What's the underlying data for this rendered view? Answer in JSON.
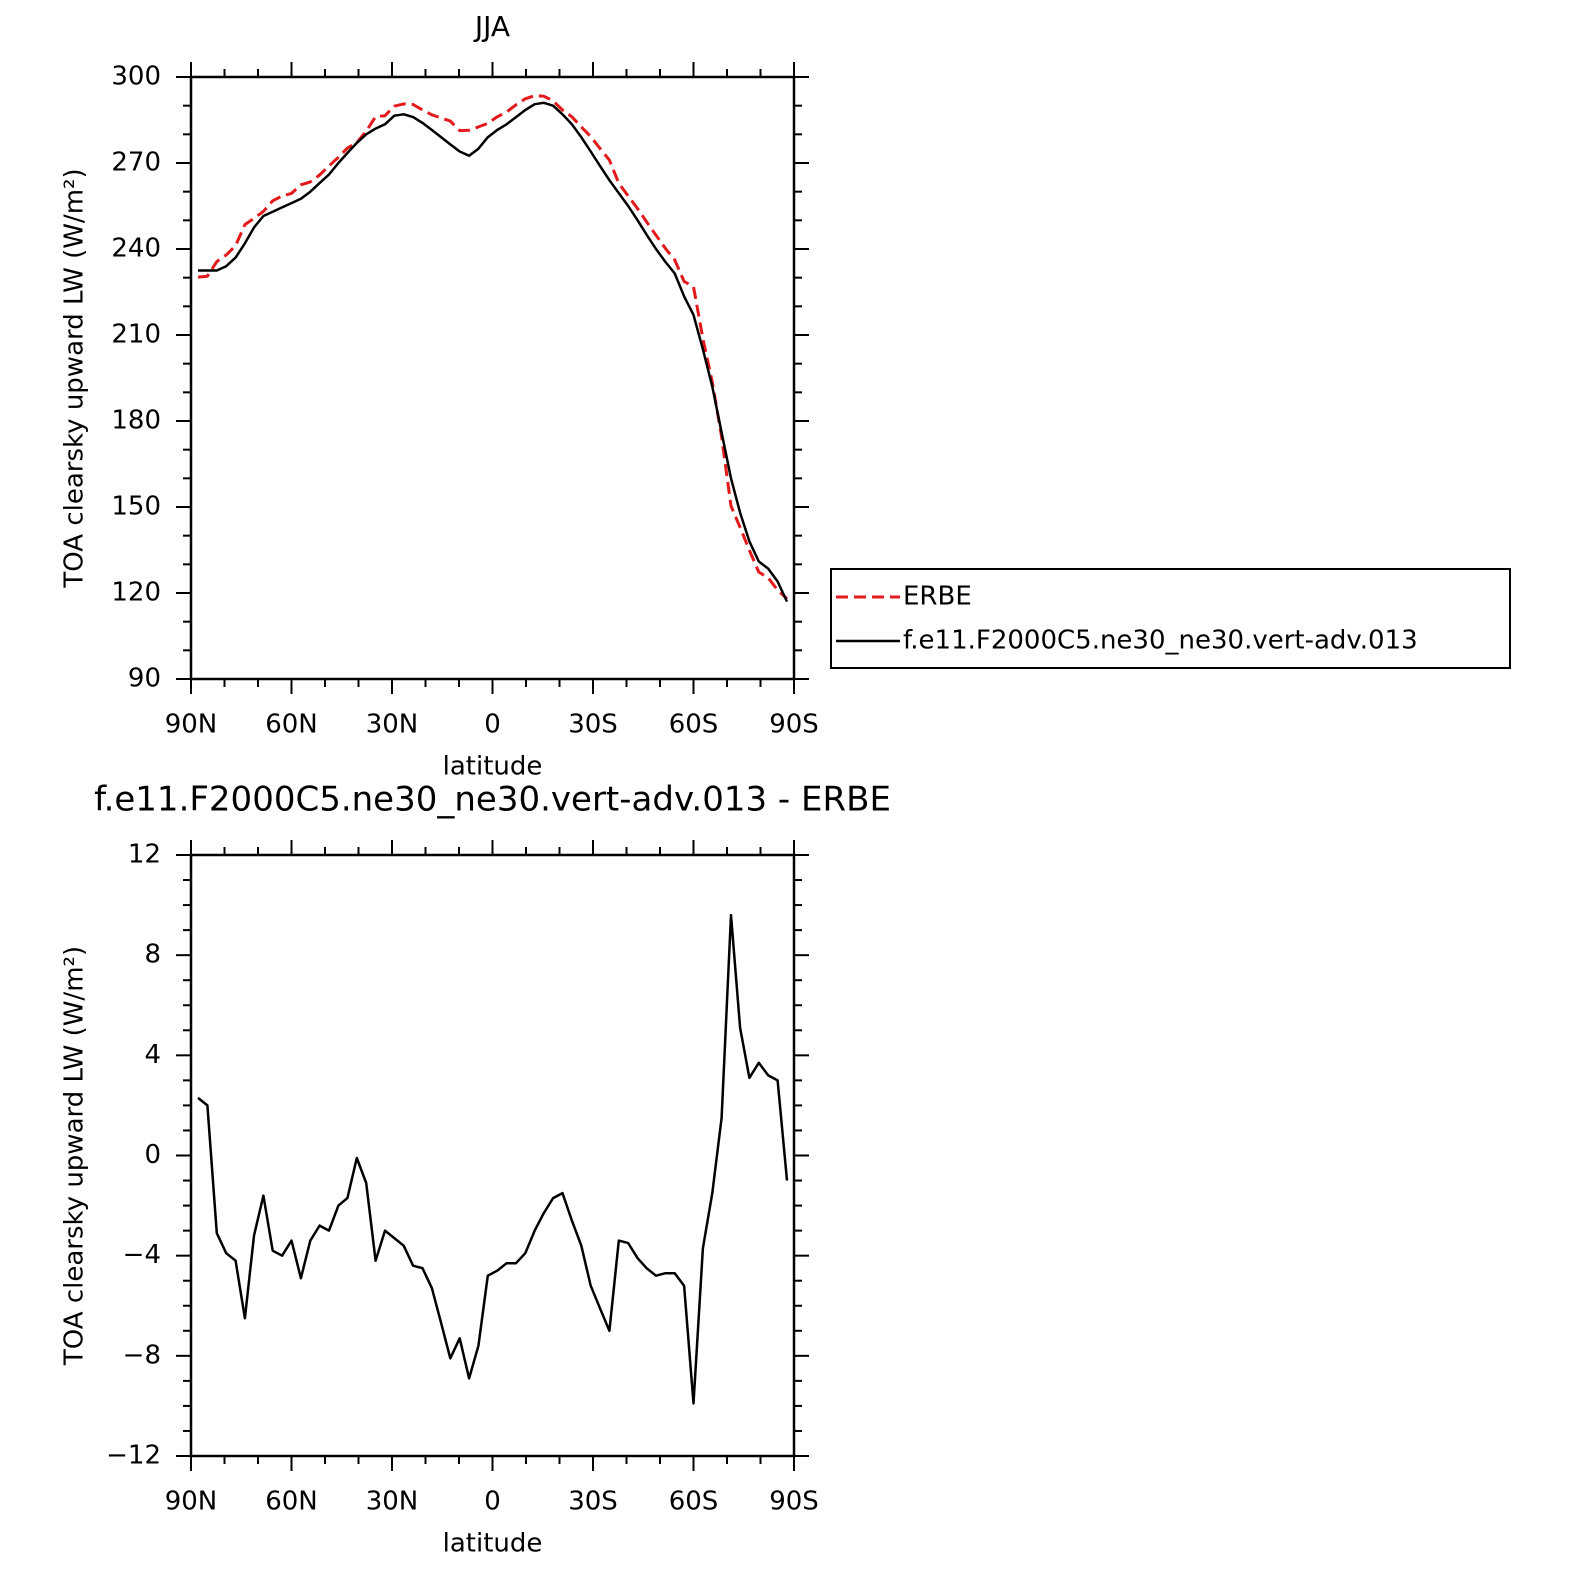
{
  "chart_data": [
    {
      "type": "line",
      "title": "JJA",
      "xlabel": "latitude",
      "ylabel": "TOA clearsky upward LW (W/m²)",
      "x": [
        87.9,
        85.1,
        82.3,
        79.5,
        76.7,
        73.9,
        71.2,
        68.4,
        65.6,
        62.8,
        60.0,
        57.2,
        54.4,
        51.6,
        48.8,
        46.0,
        43.3,
        40.5,
        37.7,
        34.9,
        32.1,
        29.3,
        26.5,
        23.7,
        20.9,
        18.1,
        15.3,
        12.6,
        9.8,
        7.0,
        4.2,
        1.4,
        -1.4,
        -4.2,
        -7.0,
        -9.8,
        -12.6,
        -15.3,
        -18.1,
        -20.9,
        -23.7,
        -26.5,
        -29.3,
        -32.1,
        -34.9,
        -37.7,
        -40.5,
        -43.3,
        -46.0,
        -48.8,
        -51.6,
        -54.4,
        -57.2,
        -60.0,
        -62.8,
        -65.6,
        -68.4,
        -71.2,
        -73.9,
        -76.7,
        -79.5,
        -82.3,
        -85.1,
        -87.9
      ],
      "series": [
        {
          "name": "ERBE",
          "color": "#e31a1c",
          "dash": true,
          "values": [
            230.2,
            230.5,
            235.6,
            237.9,
            241.2,
            248.5,
            250.7,
            253.1,
            256.8,
            258.5,
            259.4,
            262.4,
            263.4,
            265.8,
            269.0,
            272.0,
            275.2,
            277.1,
            281.1,
            286.2,
            286.5,
            289.8,
            290.6,
            290.4,
            288.5,
            286.8,
            285.7,
            284.6,
            281.3,
            281.4,
            282.6,
            283.8,
            286.1,
            287.8,
            290.3,
            292.4,
            293.5,
            293.3,
            291.7,
            288.5,
            286.1,
            282.6,
            279.2,
            275.1,
            271.0,
            262.9,
            258.5,
            254.1,
            249.5,
            244.8,
            240.2,
            236.2,
            228.7,
            226.9,
            208.7,
            193.5,
            174.5,
            150.4,
            142.9,
            134.9,
            127.3,
            125.3,
            121.0,
            118.0
          ]
        },
        {
          "name": "f.e11.F2000C5.ne30_ne30.vert-adv.013",
          "color": "#000000",
          "dash": false,
          "values": [
            232.5,
            232.5,
            232.5,
            234.0,
            237.0,
            242.0,
            247.5,
            251.5,
            253.0,
            254.5,
            256.0,
            257.5,
            260.0,
            263.0,
            266.0,
            270.0,
            273.5,
            277.0,
            280.0,
            282.0,
            283.5,
            286.5,
            287.0,
            286.0,
            284.0,
            281.5,
            279.0,
            276.5,
            274.0,
            272.5,
            275.0,
            279.0,
            281.5,
            283.5,
            286.0,
            288.5,
            290.5,
            291.0,
            290.0,
            287.0,
            283.5,
            279.0,
            274.0,
            269.0,
            264.0,
            259.5,
            255.0,
            250.0,
            245.0,
            240.0,
            235.5,
            231.5,
            223.5,
            217.0,
            205.0,
            192.0,
            176.0,
            160.0,
            148.0,
            138.0,
            131.0,
            128.5,
            124.0,
            117.0
          ]
        }
      ],
      "xlim": [
        90,
        -90
      ],
      "xticks": [
        {
          "value": 90,
          "label": "90N"
        },
        {
          "value": 60,
          "label": "60N"
        },
        {
          "value": 30,
          "label": "30N"
        },
        0,
        {
          "value": -30,
          "label": "30S"
        },
        {
          "value": -60,
          "label": "60S"
        },
        {
          "value": -90,
          "label": "90S"
        }
      ],
      "xminorticks": [
        80,
        70,
        50,
        40,
        20,
        10,
        -10,
        -20,
        -40,
        -50,
        -70,
        -80
      ],
      "ylim": [
        90,
        300
      ],
      "yticks": [
        90,
        120,
        150,
        180,
        210,
        240,
        270,
        300
      ],
      "yminorticks": [
        100,
        110,
        130,
        140,
        160,
        170,
        190,
        200,
        220,
        230,
        250,
        260,
        280,
        290
      ],
      "legend": "outside-right"
    },
    {
      "type": "line",
      "title": "f.e11.F2000C5.ne30_ne30.vert-adv.013 - ERBE",
      "xlabel": "latitude",
      "ylabel": "TOA clearsky upward LW (W/m²)",
      "x": [
        87.9,
        85.1,
        82.3,
        79.5,
        76.7,
        73.9,
        71.2,
        68.4,
        65.6,
        62.8,
        60.0,
        57.2,
        54.4,
        51.6,
        48.8,
        46.0,
        43.3,
        40.5,
        37.7,
        34.9,
        32.1,
        29.3,
        26.5,
        23.7,
        20.9,
        18.1,
        15.3,
        12.6,
        9.8,
        7.0,
        4.2,
        1.4,
        -1.4,
        -4.2,
        -7.0,
        -9.8,
        -12.6,
        -15.3,
        -18.1,
        -20.9,
        -23.7,
        -26.5,
        -29.3,
        -32.1,
        -34.9,
        -37.7,
        -40.5,
        -43.3,
        -46.0,
        -48.8,
        -51.6,
        -54.4,
        -57.2,
        -60.0,
        -62.8,
        -65.6,
        -68.4,
        -71.2,
        -73.9,
        -76.7,
        -79.5,
        -82.3,
        -85.1,
        -87.9
      ],
      "values": [
        2.3,
        2.0,
        -3.1,
        -3.9,
        -4.2,
        -6.5,
        -3.2,
        -1.6,
        -3.8,
        -4.0,
        -3.4,
        -4.9,
        -3.4,
        -2.8,
        -3.0,
        -2.0,
        -1.7,
        -0.1,
        -1.1,
        -4.2,
        -3.0,
        -3.3,
        -3.6,
        -4.4,
        -4.5,
        -5.3,
        -6.7,
        -8.1,
        -7.3,
        -8.9,
        -7.6,
        -4.8,
        -4.6,
        -4.3,
        -4.3,
        -3.9,
        -3.0,
        -2.3,
        -1.7,
        -1.5,
        -2.6,
        -3.6,
        -5.2,
        -6.1,
        -7.0,
        -3.4,
        -3.5,
        -4.1,
        -4.5,
        -4.8,
        -4.7,
        -4.7,
        -5.2,
        -9.9,
        -3.7,
        -1.5,
        1.5,
        9.6,
        5.1,
        3.1,
        3.7,
        3.2,
        3.0,
        -1.0
      ],
      "color": "#000000",
      "xlim": [
        90,
        -90
      ],
      "xticks": [
        {
          "value": 90,
          "label": "90N"
        },
        {
          "value": 60,
          "label": "60N"
        },
        {
          "value": 30,
          "label": "30N"
        },
        0,
        {
          "value": -30,
          "label": "30S"
        },
        {
          "value": -60,
          "label": "60S"
        },
        {
          "value": -90,
          "label": "90S"
        }
      ],
      "xminorticks": [
        80,
        70,
        50,
        40,
        20,
        10,
        -10,
        -20,
        -40,
        -50,
        -70,
        -80
      ],
      "ylim": [
        -12,
        12
      ],
      "yticks": [
        {
          "value": -12,
          "label": "−12"
        },
        {
          "value": -8,
          "label": "−8"
        },
        {
          "value": -4,
          "label": "−4"
        },
        0,
        4,
        8,
        12
      ],
      "yminorticks": [
        -11,
        -10,
        -9,
        -7,
        -6,
        -5,
        -3,
        -2,
        -1,
        1,
        2,
        3,
        5,
        6,
        7,
        9,
        10,
        11
      ]
    }
  ]
}
